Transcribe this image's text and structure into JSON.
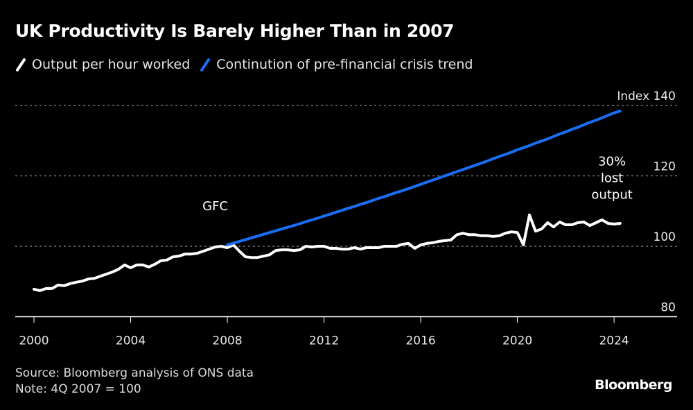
{
  "chart_data": {
    "type": "line",
    "title": "UK Productivity Is Barely Higher Than in 2007",
    "xlabel": "",
    "ylabel": "Index",
    "ylim": [
      80,
      140
    ],
    "xlim": [
      1999.6,
      2026.5
    ],
    "yticks": [
      80,
      100,
      120,
      140
    ],
    "xticks": [
      2000,
      2004,
      2008,
      2012,
      2016,
      2020,
      2024
    ],
    "xtick_labels": [
      "2000",
      "2004",
      "2008",
      "2012",
      "2016",
      "2020",
      "2024"
    ],
    "ytick_labels": [
      "80",
      "100",
      "120",
      "Index  140"
    ],
    "grid": "horizontal dotted",
    "legend_position": "top-left",
    "series": [
      {
        "name": "Output per hour worked",
        "color": "#ffffff",
        "start": 2000.0,
        "step": 0.25,
        "values": [
          87.8,
          87.4,
          88.0,
          88.0,
          89.0,
          88.8,
          89.4,
          89.8,
          90.1,
          90.7,
          90.9,
          91.5,
          92.1,
          92.7,
          93.5,
          94.7,
          93.9,
          94.7,
          94.7,
          94.1,
          94.9,
          95.9,
          96.1,
          97.0,
          97.2,
          97.8,
          97.8,
          98.0,
          98.6,
          99.2,
          99.8,
          100.0,
          99.6,
          100.4,
          98.6,
          97.0,
          96.8,
          96.8,
          97.2,
          97.6,
          98.8,
          99.0,
          99.0,
          98.8,
          99.0,
          100.0,
          99.8,
          100.0,
          100.0,
          99.4,
          99.4,
          99.2,
          99.2,
          99.6,
          99.2,
          99.6,
          99.6,
          99.6,
          100.0,
          100.0,
          100.0,
          100.6,
          100.8,
          99.4,
          100.4,
          100.8,
          101.0,
          101.4,
          101.6,
          101.8,
          103.3,
          103.7,
          103.3,
          103.3,
          103.0,
          103.0,
          102.8,
          103.0,
          103.7,
          104.1,
          103.9,
          100.4,
          108.9,
          104.3,
          104.9,
          106.7,
          105.5,
          106.9,
          106.1,
          106.1,
          106.7,
          106.9,
          105.9,
          106.7,
          107.5,
          106.5,
          106.3,
          106.5
        ]
      },
      {
        "name": "Continution of pre-financial crisis trend",
        "color": "#1a6ef5",
        "start": 2008.0,
        "step": 0.25,
        "values": [
          100.4,
          100.9,
          101.4,
          101.9,
          102.4,
          102.9,
          103.4,
          103.9,
          104.4,
          104.9,
          105.4,
          105.9,
          106.4,
          107.0,
          107.5,
          108.0,
          108.6,
          109.1,
          109.7,
          110.2,
          110.8,
          111.3,
          111.9,
          112.4,
          113.0,
          113.6,
          114.1,
          114.7,
          115.3,
          115.8,
          116.4,
          117.0,
          117.6,
          118.2,
          118.8,
          119.4,
          120.0,
          120.6,
          121.2,
          121.8,
          122.4,
          123.0,
          123.6,
          124.2,
          124.9,
          125.5,
          126.1,
          126.7,
          127.4,
          128.0,
          128.6,
          129.3,
          129.9,
          130.5,
          131.2,
          131.9,
          132.5,
          133.2,
          133.8,
          134.5,
          135.2,
          135.8,
          136.5,
          137.2,
          137.9,
          138.4
        ]
      }
    ],
    "annotations": [
      {
        "text": "GFC",
        "x": 2007.5,
        "y": 110.2
      },
      {
        "lines": [
          "30%",
          "lost",
          "output"
        ],
        "x": 2024.0,
        "y": 123
      }
    ]
  },
  "header": {
    "title": "UK Productivity Is Barely Higher Than in 2007"
  },
  "legend": [
    {
      "label": "Output per hour worked",
      "color": "#ffffff"
    },
    {
      "label": "Continution of pre-financial crisis trend",
      "color": "#1a6ef5"
    }
  ],
  "footer": {
    "source": "Source: Bloomberg analysis of ONS data",
    "note": "Note: 4Q 2007 = 100",
    "brand": "Bloomberg"
  }
}
